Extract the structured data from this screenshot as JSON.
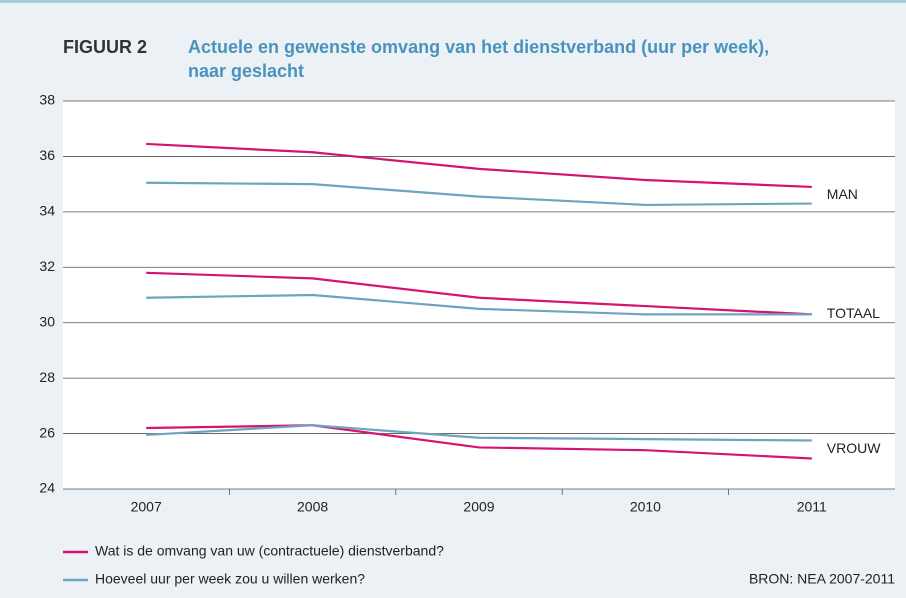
{
  "chart_data": {
    "type": "line",
    "figure_label": "FIGUUR 2",
    "title": [
      "Actuele en gewenste omvang van het dienstverband (uur per week),",
      "naar geslacht"
    ],
    "categories": [
      "2007",
      "2008",
      "2009",
      "2010",
      "2011"
    ],
    "legend_series": [
      {
        "name": "Wat is de omvang van uw (contractuele) dienstverband?",
        "color": "#d3156f"
      },
      {
        "name": "Hoeveel uur per week zou u willen werken?",
        "color": "#6ea3c2"
      }
    ],
    "groups": [
      {
        "label": "MAN",
        "series": [
          {
            "values": [
              36.45,
              36.15,
              35.55,
              35.15,
              34.9
            ]
          },
          {
            "values": [
              35.05,
              35.0,
              34.55,
              34.25,
              34.3
            ]
          }
        ]
      },
      {
        "label": "TOTAAL",
        "series": [
          {
            "values": [
              31.8,
              31.6,
              30.9,
              30.6,
              30.3
            ]
          },
          {
            "values": [
              30.9,
              31.0,
              30.5,
              30.3,
              30.3
            ]
          }
        ]
      },
      {
        "label": "VROUW",
        "series": [
          {
            "values": [
              26.2,
              26.3,
              25.5,
              25.4,
              25.1
            ]
          },
          {
            "values": [
              25.95,
              26.3,
              25.85,
              25.8,
              25.75
            ]
          }
        ]
      }
    ],
    "ylim": [
      24,
      38
    ],
    "yticks": [
      24,
      26,
      28,
      30,
      32,
      34,
      36,
      38
    ],
    "grid": true,
    "source": "BRON: NEA 2007-2011"
  }
}
